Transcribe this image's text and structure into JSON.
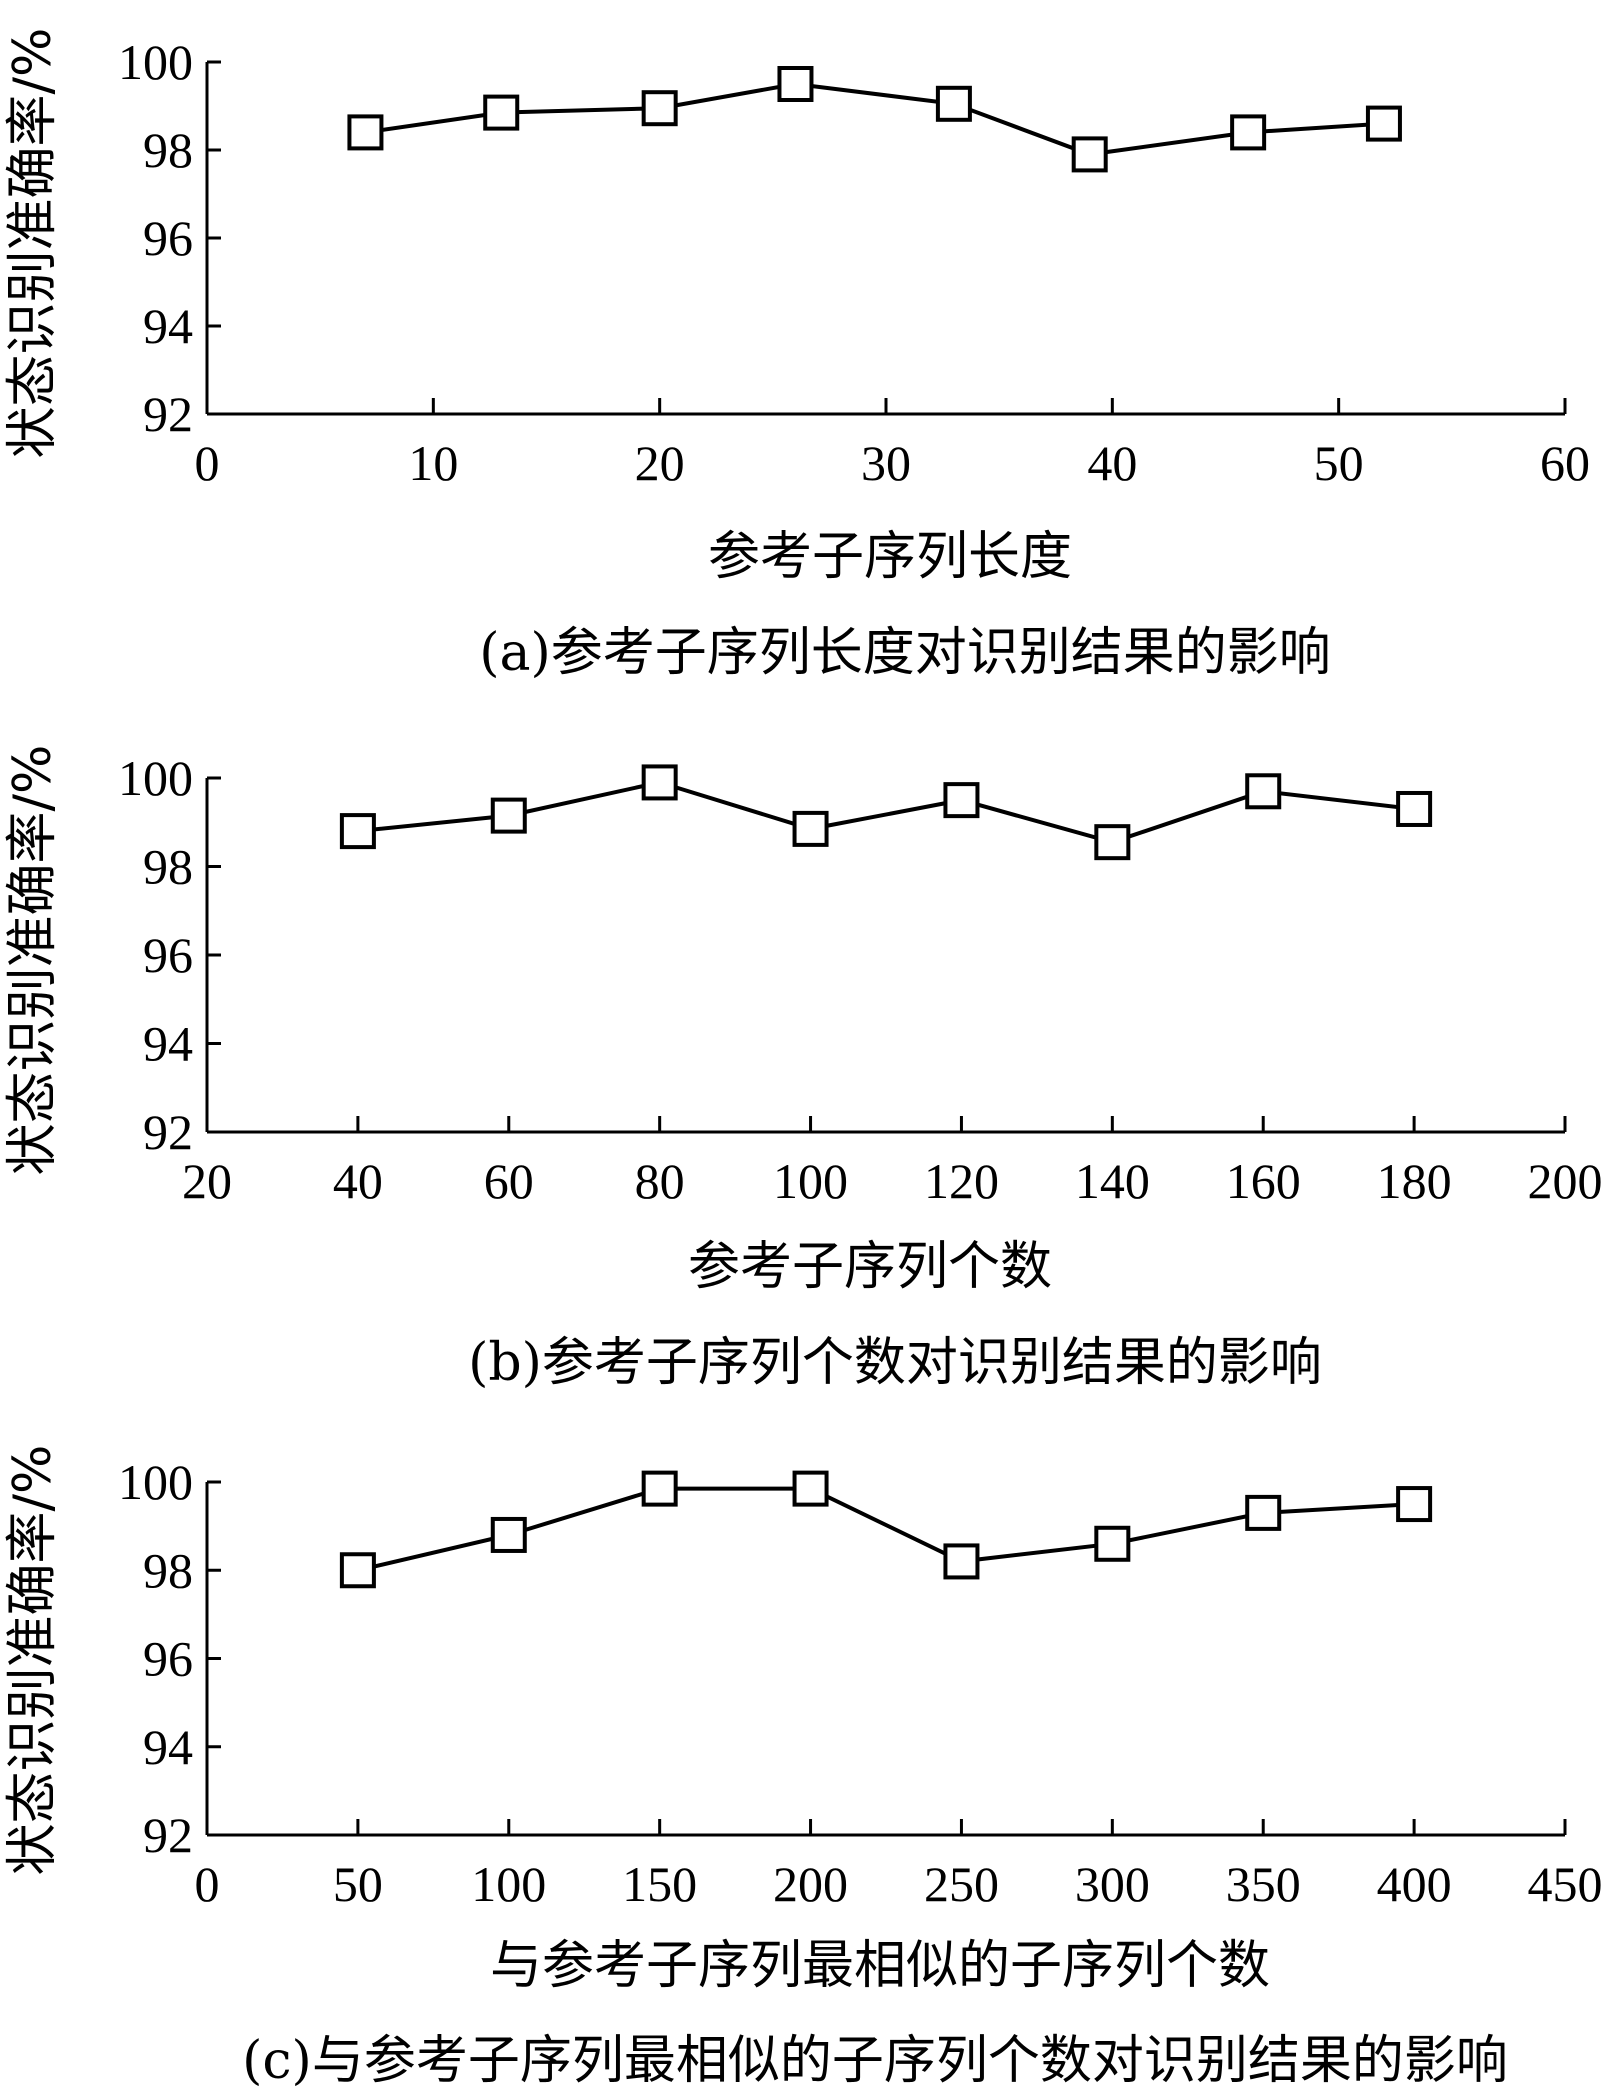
{
  "chart_data": [
    {
      "type": "line",
      "marker": "square",
      "xlabel": "参考子序列长度",
      "ylabel": "状态识别准确率/%",
      "caption": "(a)参考子序列长度对识别结果的影响",
      "xlim": [
        0,
        60
      ],
      "ylim": [
        92,
        100
      ],
      "xticks": [
        0,
        10,
        20,
        30,
        40,
        50,
        60
      ],
      "yticks": [
        92,
        94,
        96,
        98,
        100
      ],
      "series": [
        {
          "x": [
            7,
            13,
            20,
            26,
            33,
            39,
            46,
            52
          ],
          "y": [
            98.4,
            98.85,
            98.95,
            99.5,
            99.05,
            97.9,
            98.4,
            98.6
          ]
        }
      ]
    },
    {
      "type": "line",
      "marker": "square",
      "xlabel": "参考子序列个数",
      "ylabel": "状态识别准确率/%",
      "caption": "(b)参考子序列个数对识别结果的影响",
      "xlim": [
        20,
        200
      ],
      "ylim": [
        92,
        100
      ],
      "xticks": [
        20,
        40,
        60,
        80,
        100,
        120,
        140,
        160,
        180,
        200
      ],
      "yticks": [
        92,
        94,
        96,
        98,
        100
      ],
      "series": [
        {
          "x": [
            40,
            60,
            80,
            100,
            120,
            140,
            160,
            180
          ],
          "y": [
            98.8,
            99.15,
            99.9,
            98.85,
            99.5,
            98.55,
            99.7,
            99.3
          ]
        }
      ]
    },
    {
      "type": "line",
      "marker": "square",
      "xlabel": "与参考子序列最相似的子序列个数",
      "ylabel": "状态识别准确率/%",
      "caption": "(c)与参考子序列最相似的子序列个数对识别结果的影响",
      "xlim": [
        0,
        450
      ],
      "ylim": [
        92,
        100
      ],
      "xticks": [
        0,
        50,
        100,
        150,
        200,
        250,
        300,
        350,
        400,
        450
      ],
      "yticks": [
        92,
        94,
        96,
        98,
        100
      ],
      "series": [
        {
          "x": [
            50,
            100,
            150,
            200,
            250,
            300,
            350,
            400
          ],
          "y": [
            98.0,
            98.8,
            99.85,
            99.85,
            98.2,
            98.6,
            99.3,
            99.5
          ]
        }
      ]
    }
  ]
}
